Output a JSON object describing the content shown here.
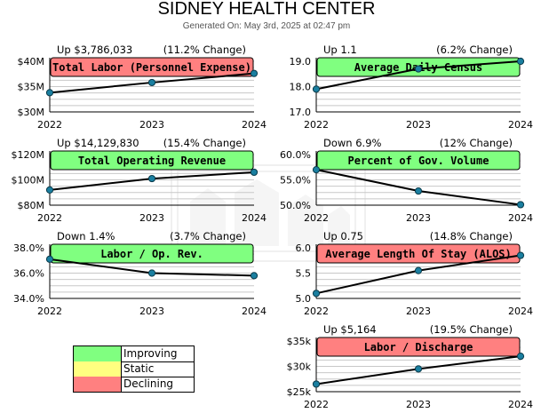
{
  "report": {
    "title": "SIDNEY HEALTH CENTER",
    "generated": "Generated On: May 3rd, 2025 at 02:47 pm"
  },
  "colors": {
    "improving": "#80ff80",
    "static": "#ffff80",
    "declining": "#ff8080",
    "line": "#000000",
    "marker": "#1a7fa0",
    "grid": "#c8c8c8"
  },
  "legend": [
    {
      "label": "Improving",
      "status": "improving"
    },
    {
      "label": "Static",
      "status": "static"
    },
    {
      "label": "Declining",
      "status": "declining"
    }
  ],
  "chart_data": [
    {
      "type": "line",
      "title": "Total Labor (Personnel Expense)",
      "status": "declining",
      "change_value": "Up $3,786,033",
      "change_pct": "(11.2% Change)",
      "x": [
        "2022",
        "2023",
        "2024"
      ],
      "values": [
        33800000,
        35800000,
        37600000
      ],
      "ylim": [
        30000000,
        40000000
      ],
      "yticks": [
        30000000,
        35000000,
        40000000
      ],
      "ytick_labels": [
        "$30M",
        "$35M",
        "$40M"
      ],
      "grid": true
    },
    {
      "type": "line",
      "title": "Average Daily Census",
      "status": "improving",
      "change_value": "Up 1.1",
      "change_pct": "(6.2% Change)",
      "x": [
        "2022",
        "2023",
        "2024"
      ],
      "values": [
        17.9,
        18.7,
        19.0
      ],
      "ylim": [
        17.0,
        19.0
      ],
      "yticks": [
        17.0,
        18.0,
        19.0
      ],
      "ytick_labels": [
        "17.0",
        "18.0",
        "19.0"
      ],
      "grid": true
    },
    {
      "type": "line",
      "title": "Total Operating Revenue",
      "status": "improving",
      "change_value": "Up $14,129,830",
      "change_pct": "(15.4% Change)",
      "x": [
        "2022",
        "2023",
        "2024"
      ],
      "values": [
        92000000,
        101000000,
        106000000
      ],
      "ylim": [
        80000000,
        120000000
      ],
      "yticks": [
        80000000,
        100000000,
        120000000
      ],
      "ytick_labels": [
        "$80M",
        "$100M",
        "$120M"
      ],
      "grid": true
    },
    {
      "type": "line",
      "title": "Percent of Gov. Volume",
      "status": "improving",
      "change_value": "Down 6.9%",
      "change_pct": "(12% Change)",
      "x": [
        "2022",
        "2023",
        "2024"
      ],
      "values": [
        57.0,
        52.8,
        50.1
      ],
      "ylim": [
        50.0,
        60.0
      ],
      "yticks": [
        50.0,
        55.0,
        60.0
      ],
      "ytick_labels": [
        "50.0%",
        "55.0%",
        "60.0%"
      ],
      "grid": true
    },
    {
      "type": "line",
      "title": "Labor / Op. Rev.",
      "status": "improving",
      "change_value": "Down 1.4%",
      "change_pct": "(3.7% Change)",
      "x": [
        "2022",
        "2023",
        "2024"
      ],
      "values": [
        37.1,
        36.0,
        35.8
      ],
      "ylim": [
        34.0,
        38.0
      ],
      "yticks": [
        34.0,
        36.0,
        38.0
      ],
      "ytick_labels": [
        "34.0%",
        "36.0%",
        "38.0%"
      ],
      "grid": true
    },
    {
      "type": "line",
      "title": "Average Length Of Stay (ALOS)",
      "status": "declining",
      "change_value": "Up 0.75",
      "change_pct": "(14.8% Change)",
      "x": [
        "2022",
        "2023",
        "2024"
      ],
      "values": [
        5.1,
        5.55,
        5.85
      ],
      "ylim": [
        5.0,
        6.0
      ],
      "yticks": [
        5.0,
        5.5,
        6.0
      ],
      "ytick_labels": [
        "5.0",
        "5.5",
        "6.0"
      ],
      "grid": true
    },
    {
      "type": "line",
      "title": "Labor / Discharge",
      "status": "declining",
      "change_value": "Up $5,164",
      "change_pct": "(19.5% Change)",
      "x": [
        "2022",
        "2023",
        "2024"
      ],
      "values": [
        26500,
        29500,
        32000
      ],
      "ylim": [
        25000,
        35000
      ],
      "yticks": [
        25000,
        30000,
        35000
      ],
      "ytick_labels": [
        "$25k",
        "$30k",
        "$35k"
      ],
      "grid": true
    }
  ]
}
